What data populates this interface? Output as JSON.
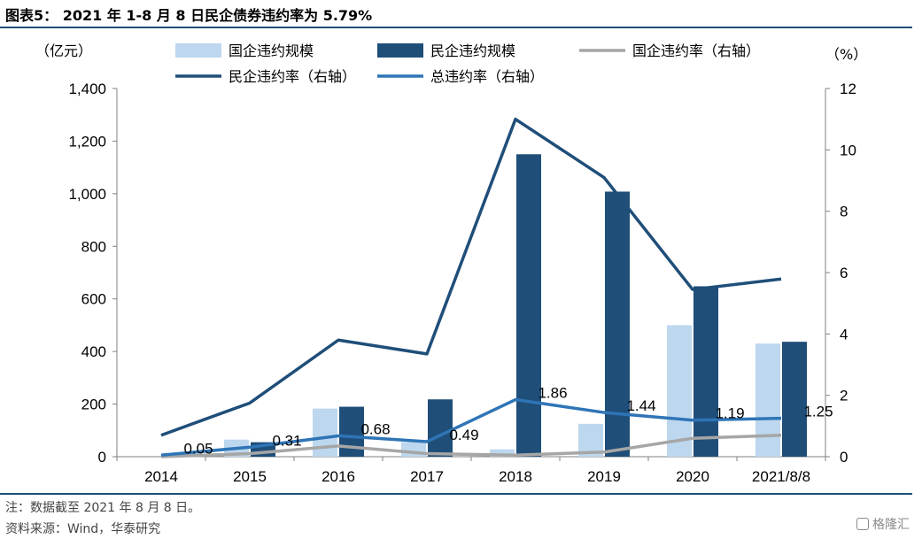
{
  "title": "图表5：  2021 年 1-8 月 8 日民企债券违约率为 5.79%",
  "footer": {
    "note": "注：数据截至 2021 年 8 月 8 日。",
    "source": "资料来源：Wind，华泰研究",
    "watermark": "格隆汇"
  },
  "chart_data": {
    "type": "bar",
    "categories": [
      "2014",
      "2015",
      "2016",
      "2017",
      "2018",
      "2019",
      "2020",
      "2021/8/8"
    ],
    "left_axis": {
      "label": "（亿元）",
      "ylim": [
        0,
        1400
      ],
      "ticks": [
        "0",
        "200",
        "400",
        "600",
        "800",
        "1,000",
        "1,200",
        "1,400"
      ]
    },
    "right_axis": {
      "label": "（%）",
      "ylim": [
        0,
        12
      ],
      "ticks": [
        "0",
        "2",
        "4",
        "6",
        "8",
        "10",
        "12"
      ]
    },
    "bar_series": [
      {
        "name": "国企违约规模",
        "color": "#bdd7ee",
        "values": [
          0,
          65,
          183,
          55,
          28,
          125,
          500,
          430
        ]
      },
      {
        "name": "民企违约规模",
        "color": "#1f4e79",
        "values": [
          5,
          55,
          190,
          218,
          1150,
          1008,
          648,
          437
        ]
      }
    ],
    "line_series": [
      {
        "name": "国企违约率（右轴）",
        "color": "#a6a6a6",
        "values": [
          0.0,
          0.1,
          0.35,
          0.1,
          0.05,
          0.15,
          0.6,
          0.7
        ]
      },
      {
        "name": "民企违约率（右轴）",
        "color": "#1f4e79",
        "values": [
          0.7,
          1.75,
          3.8,
          3.35,
          11.0,
          9.1,
          5.45,
          5.79
        ]
      },
      {
        "name": "总违约率（右轴）",
        "color": "#2e75b6",
        "values": [
          0.05,
          0.31,
          0.68,
          0.49,
          1.86,
          1.44,
          1.19,
          1.25
        ],
        "labels": [
          "0.05",
          "0.31",
          "0.68",
          "0.49",
          "1.86",
          "1.44",
          "1.19",
          "1.25"
        ]
      }
    ],
    "legend_placement": "top",
    "grid": false
  }
}
